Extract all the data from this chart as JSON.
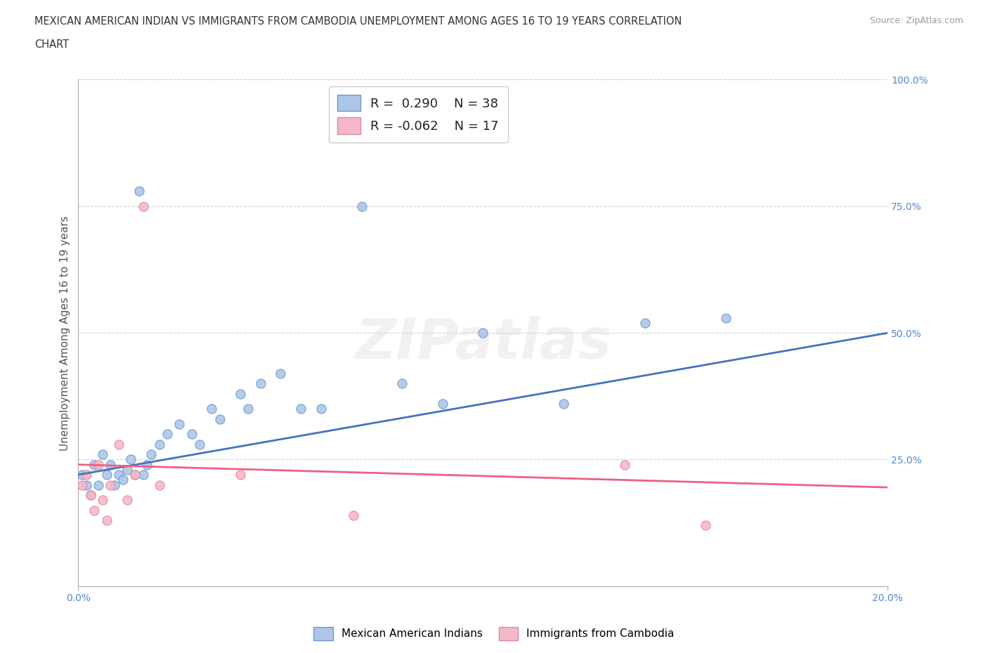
{
  "title_line1": "MEXICAN AMERICAN INDIAN VS IMMIGRANTS FROM CAMBODIA UNEMPLOYMENT AMONG AGES 16 TO 19 YEARS CORRELATION",
  "title_line2": "CHART",
  "source": "Source: ZipAtlas.com",
  "ylabel": "Unemployment Among Ages 16 to 19 years",
  "xmin": 0.0,
  "xmax": 0.2,
  "ymin": 0.0,
  "ymax": 1.0,
  "ytick_positions": [
    0.0,
    0.25,
    0.5,
    0.75,
    1.0
  ],
  "ytick_labels": [
    "",
    "25.0%",
    "50.0%",
    "75.0%",
    "100.0%"
  ],
  "xtick_positions": [
    0.0,
    0.2
  ],
  "xtick_labels": [
    "0.0%",
    "20.0%"
  ],
  "watermark": "ZIPatlas",
  "blue_color": "#aec6e8",
  "pink_color": "#f4b8c8",
  "blue_edge_color": "#6699cc",
  "pink_edge_color": "#e08898",
  "blue_line_color": "#4472c4",
  "pink_line_color": "#f06080",
  "blue_R": 0.29,
  "blue_N": 38,
  "pink_R": -0.062,
  "pink_N": 17,
  "blue_scatter_x": [
    0.001,
    0.002,
    0.003,
    0.004,
    0.005,
    0.006,
    0.007,
    0.008,
    0.009,
    0.01,
    0.011,
    0.012,
    0.013,
    0.014,
    0.015,
    0.016,
    0.017,
    0.018,
    0.02,
    0.022,
    0.025,
    0.028,
    0.03,
    0.033,
    0.035,
    0.04,
    0.042,
    0.045,
    0.05,
    0.055,
    0.06,
    0.07,
    0.08,
    0.09,
    0.1,
    0.12,
    0.14,
    0.16
  ],
  "blue_scatter_y": [
    0.22,
    0.2,
    0.18,
    0.24,
    0.2,
    0.26,
    0.22,
    0.24,
    0.2,
    0.22,
    0.21,
    0.23,
    0.25,
    0.22,
    0.78,
    0.22,
    0.24,
    0.26,
    0.28,
    0.3,
    0.32,
    0.3,
    0.28,
    0.35,
    0.33,
    0.38,
    0.35,
    0.4,
    0.42,
    0.35,
    0.35,
    0.75,
    0.4,
    0.36,
    0.5,
    0.36,
    0.52,
    0.53
  ],
  "pink_scatter_x": [
    0.001,
    0.002,
    0.003,
    0.004,
    0.005,
    0.006,
    0.007,
    0.008,
    0.01,
    0.012,
    0.014,
    0.016,
    0.02,
    0.04,
    0.068,
    0.135,
    0.155
  ],
  "pink_scatter_y": [
    0.2,
    0.22,
    0.18,
    0.15,
    0.24,
    0.17,
    0.13,
    0.2,
    0.28,
    0.17,
    0.22,
    0.75,
    0.2,
    0.22,
    0.14,
    0.24,
    0.12
  ],
  "blue_line_x0": 0.0,
  "blue_line_x1": 0.2,
  "blue_line_y0": 0.22,
  "blue_line_y1": 0.5,
  "pink_line_x0": 0.0,
  "pink_line_x1": 0.2,
  "pink_line_y0": 0.24,
  "pink_line_y1": 0.195,
  "background_color": "#ffffff",
  "grid_color": "#cccccc"
}
